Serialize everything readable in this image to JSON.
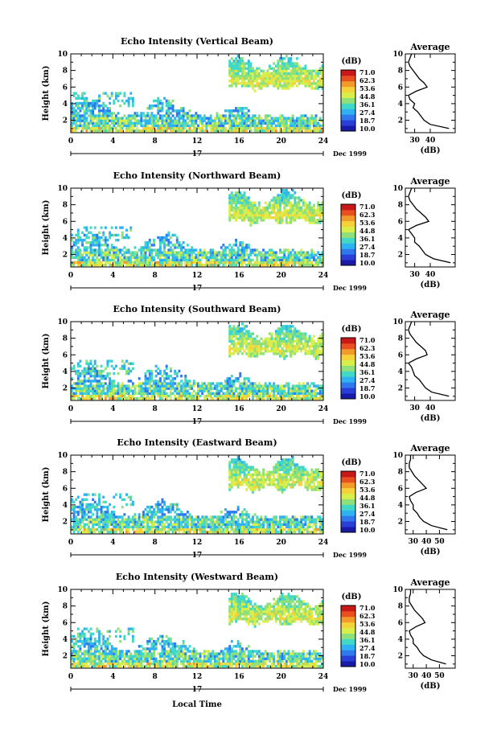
{
  "colorbar": {
    "title": "(dB)",
    "ticks": [
      "71.0",
      "62.3",
      "53.6",
      "44.8",
      "36.1",
      "27.4",
      "18.7",
      "10.0"
    ],
    "range": [
      10.0,
      71.0
    ],
    "colors": [
      "#1a1aa8",
      "#2a3fd8",
      "#2f78ee",
      "#2fb2f2",
      "#42d8c8",
      "#8ee07a",
      "#d8ee4a",
      "#f6d23a",
      "#f29a2a",
      "#e85020",
      "#c81818"
    ]
  },
  "date_label": "Dec 1999",
  "day_label": "17",
  "xlabel": "Local Time",
  "chart_data": [
    {
      "type": "heatmap",
      "title": "Echo Intensity (Vertical Beam)",
      "ylabel": "Height (km)",
      "xlim": [
        0,
        24
      ],
      "ylim": [
        0.5,
        10
      ],
      "xticks": [
        0,
        4,
        8,
        12,
        16,
        20,
        24
      ],
      "yticks": [
        2,
        4,
        6,
        8,
        10
      ],
      "average": {
        "title": "Average",
        "xlabel": "(dB)",
        "xlim": [
          24,
          56
        ],
        "xticks": [
          30,
          40
        ],
        "heights": [
          1,
          1.5,
          2,
          2.5,
          3,
          3.5,
          4,
          4.5,
          5,
          5.5,
          6,
          6.5,
          7,
          7.5,
          8,
          8.5,
          9,
          9.5,
          10
        ],
        "values": [
          52,
          40,
          36,
          34,
          32,
          29,
          30,
          27,
          26,
          31,
          38,
          36,
          33,
          31,
          29,
          27,
          26,
          27,
          28
        ]
      }
    },
    {
      "type": "heatmap",
      "title": "Echo Intensity (Northward Beam)",
      "ylabel": "Height (km)",
      "xlim": [
        0,
        24
      ],
      "ylim": [
        0.5,
        10
      ],
      "xticks": [
        0,
        4,
        8,
        12,
        16,
        20,
        24
      ],
      "yticks": [
        2,
        4,
        6,
        8,
        10
      ],
      "average": {
        "title": "Average",
        "xlabel": "(dB)",
        "xlim": [
          24,
          56
        ],
        "xticks": [
          30,
          40
        ],
        "heights": [
          1,
          1.5,
          2,
          2.5,
          3,
          3.5,
          4,
          4.5,
          5,
          5.5,
          6,
          6.5,
          7,
          7.5,
          8,
          8.5,
          9,
          9.5,
          10
        ],
        "values": [
          53,
          42,
          37,
          35,
          33,
          30,
          30,
          28,
          26,
          31,
          39,
          37,
          34,
          31,
          29,
          27,
          26,
          27,
          28
        ]
      }
    },
    {
      "type": "heatmap",
      "title": "Echo Intensity (Southward Beam)",
      "ylabel": "Height (km)",
      "xlim": [
        0,
        24
      ],
      "ylim": [
        0.5,
        10
      ],
      "xticks": [
        0,
        4,
        8,
        12,
        16,
        20,
        24
      ],
      "yticks": [
        2,
        4,
        6,
        8,
        10
      ],
      "average": {
        "title": "Average",
        "xlabel": "(dB)",
        "xlim": [
          24,
          56
        ],
        "xticks": [
          30,
          40
        ],
        "heights": [
          1,
          1.5,
          2,
          2.5,
          3,
          3.5,
          4,
          4.5,
          5,
          5.5,
          6,
          6.5,
          7,
          7.5,
          8,
          8.5,
          9,
          9.5,
          10
        ],
        "values": [
          52,
          41,
          37,
          35,
          33,
          30,
          29,
          28,
          26,
          31,
          38,
          37,
          34,
          31,
          29,
          27,
          26,
          27,
          28
        ]
      }
    },
    {
      "type": "heatmap",
      "title": "Echo Intensity (Eastward Beam)",
      "ylabel": "Height (km)",
      "xlim": [
        0,
        24
      ],
      "ylim": [
        0.5,
        10
      ],
      "xticks": [
        0,
        4,
        8,
        12,
        16,
        20,
        24
      ],
      "yticks": [
        2,
        4,
        6,
        8,
        10
      ],
      "average": {
        "title": "Average",
        "xlabel": "(dB)",
        "xlim": [
          24,
          62
        ],
        "xticks": [
          30,
          40,
          50
        ],
        "heights": [
          1,
          1.5,
          2,
          2.5,
          3,
          3.5,
          4,
          4.5,
          5,
          5.5,
          6,
          6.5,
          7,
          7.5,
          8,
          8.5,
          9,
          9.5,
          10
        ],
        "values": [
          56,
          44,
          38,
          35,
          33,
          30,
          30,
          28,
          27,
          32,
          40,
          37,
          34,
          31,
          29,
          27,
          27,
          28,
          28
        ]
      }
    },
    {
      "type": "heatmap",
      "title": "Echo Intensity (Westward Beam)",
      "ylabel": "Height (km)",
      "xlim": [
        0,
        24
      ],
      "ylim": [
        0.5,
        10
      ],
      "xticks": [
        0,
        4,
        8,
        12,
        16,
        20,
        24
      ],
      "yticks": [
        2,
        4,
        6,
        8,
        10
      ],
      "average": {
        "title": "Average",
        "xlabel": "(dB)",
        "xlim": [
          24,
          62
        ],
        "xticks": [
          30,
          40,
          50
        ],
        "heights": [
          1,
          1.5,
          2,
          2.5,
          3,
          3.5,
          4,
          4.5,
          5,
          5.5,
          6,
          6.5,
          7,
          7.5,
          8,
          8.5,
          9,
          9.5,
          10
        ],
        "values": [
          55,
          44,
          38,
          35,
          33,
          30,
          30,
          28,
          27,
          32,
          39,
          37,
          34,
          31,
          29,
          27,
          27,
          28,
          28
        ]
      }
    }
  ]
}
